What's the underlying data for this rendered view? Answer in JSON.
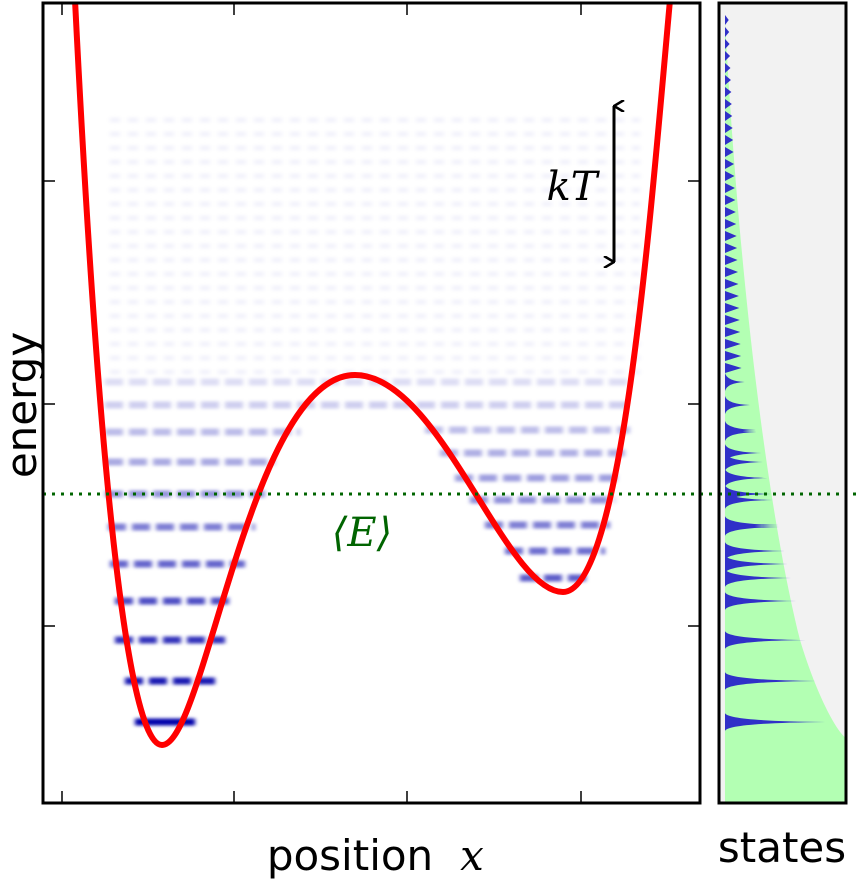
{
  "labels": {
    "y_axis": "energy",
    "x_axis": "position",
    "x_symbol": "x",
    "thermal": "kT",
    "mean_energy": "⟨E⟩",
    "side_axis": "states"
  }
}
